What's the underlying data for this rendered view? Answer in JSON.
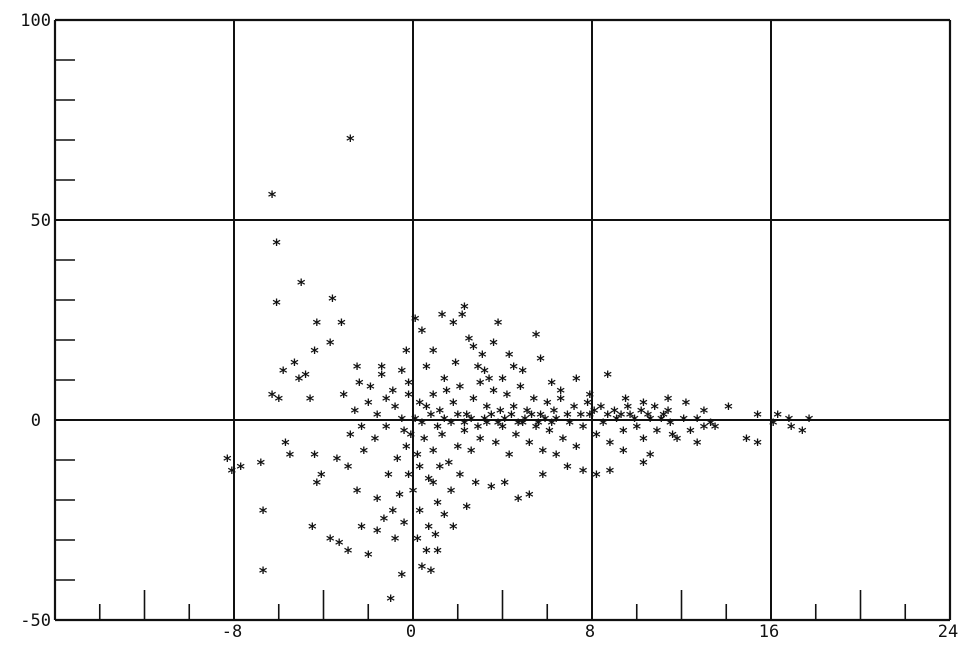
{
  "chart_data": {
    "type": "scatter",
    "title": "",
    "xlabel": "",
    "ylabel": "",
    "xlim": [
      -16,
      24
    ],
    "ylim": [
      -50,
      100
    ],
    "grid": true,
    "marker": "*",
    "x_ticks": [
      -8,
      0,
      8,
      16,
      24
    ],
    "x_tick_labels": [
      "-8",
      "0",
      "8",
      "16",
      "24"
    ],
    "y_ticks": [
      -50,
      50,
      100
    ],
    "y_tick_labels": [
      "-50",
      "50",
      "100"
    ],
    "zero_line_label": "0",
    "series": [
      {
        "points": [
          [
            -2.8,
            70
          ],
          [
            -6.3,
            56
          ],
          [
            -6.1,
            44
          ],
          [
            -6.1,
            29
          ],
          [
            -5.0,
            34
          ],
          [
            -3.6,
            30
          ],
          [
            -4.3,
            24
          ],
          [
            -3.2,
            24
          ],
          [
            -5.8,
            12
          ],
          [
            -5.3,
            14
          ],
          [
            -5.1,
            10
          ],
          [
            -4.8,
            11
          ],
          [
            -4.4,
            17
          ],
          [
            -3.7,
            19
          ],
          [
            -2.5,
            13
          ],
          [
            -3.1,
            6
          ],
          [
            -6.3,
            6
          ],
          [
            -6.0,
            5
          ],
          [
            -4.6,
            5
          ],
          [
            -8.3,
            -10
          ],
          [
            -8.1,
            -13
          ],
          [
            -7.7,
            -12
          ],
          [
            -6.8,
            -11
          ],
          [
            -5.7,
            -6
          ],
          [
            -5.5,
            -9
          ],
          [
            -4.4,
            -9
          ],
          [
            -4.1,
            -14
          ],
          [
            -4.3,
            -16
          ],
          [
            -6.7,
            -23
          ],
          [
            -6.7,
            -38
          ],
          [
            -4.5,
            -27
          ],
          [
            -3.7,
            -30
          ],
          [
            -3.3,
            -31
          ],
          [
            -2.9,
            -33
          ],
          [
            -2.3,
            -27
          ],
          [
            -2.0,
            -34
          ],
          [
            -1.6,
            -28
          ],
          [
            -2.5,
            -18
          ],
          [
            -2.9,
            -12
          ],
          [
            -3.4,
            -10
          ],
          [
            -1.0,
            -45
          ],
          [
            -0.5,
            -39
          ],
          [
            0.4,
            -37
          ],
          [
            1.1,
            -33
          ],
          [
            0.8,
            -38
          ],
          [
            0.1,
            25
          ],
          [
            0.4,
            22
          ],
          [
            1.3,
            26
          ],
          [
            2.3,
            28
          ],
          [
            2.2,
            26
          ],
          [
            1.8,
            24
          ],
          [
            3.8,
            24
          ],
          [
            3.6,
            19
          ],
          [
            5.5,
            21
          ],
          [
            5.7,
            15
          ],
          [
            4.3,
            16
          ],
          [
            2.7,
            18
          ],
          [
            -0.3,
            17
          ],
          [
            0.6,
            13
          ],
          [
            -0.2,
            9
          ],
          [
            1.4,
            10
          ],
          [
            3.2,
            12
          ],
          [
            4.5,
            13
          ],
          [
            6.2,
            9
          ],
          [
            7.3,
            10
          ],
          [
            8.7,
            11
          ],
          [
            6.6,
            7
          ],
          [
            7.9,
            6
          ],
          [
            9.5,
            5
          ],
          [
            10.3,
            4
          ],
          [
            11.4,
            5
          ],
          [
            12.2,
            4
          ],
          [
            13.0,
            2
          ],
          [
            14.1,
            3
          ],
          [
            15.4,
            1
          ],
          [
            16.3,
            1
          ],
          [
            16.8,
            0
          ],
          [
            17.7,
            0
          ],
          [
            17.4,
            -3
          ],
          [
            16.9,
            -2
          ],
          [
            16.1,
            -1
          ],
          [
            15.4,
            -6
          ],
          [
            14.9,
            -5
          ],
          [
            13.5,
            -2
          ],
          [
            12.7,
            -6
          ],
          [
            11.6,
            -4
          ],
          [
            10.6,
            -9
          ],
          [
            10.3,
            -11
          ],
          [
            9.4,
            -8
          ],
          [
            8.8,
            -13
          ],
          [
            8.2,
            -14
          ],
          [
            7.6,
            -13
          ],
          [
            6.9,
            -12
          ],
          [
            6.4,
            -9
          ],
          [
            5.8,
            -14
          ],
          [
            5.2,
            -19
          ],
          [
            4.7,
            -20
          ],
          [
            4.1,
            -16
          ],
          [
            3.5,
            -17
          ],
          [
            2.8,
            -16
          ],
          [
            2.4,
            -22
          ],
          [
            2.1,
            -14
          ],
          [
            1.7,
            -18
          ],
          [
            1.4,
            -24
          ],
          [
            1.1,
            -21
          ],
          [
            0.7,
            -27
          ],
          [
            0.3,
            -23
          ],
          [
            0.0,
            -18
          ],
          [
            -0.2,
            -14
          ],
          [
            -0.6,
            -19
          ],
          [
            -0.9,
            -23
          ],
          [
            -1.3,
            -25
          ],
          [
            -1.6,
            -20
          ],
          [
            -1.1,
            -14
          ],
          [
            -0.7,
            -10
          ],
          [
            -0.3,
            -7
          ],
          [
            0.2,
            -9
          ],
          [
            0.5,
            -5
          ],
          [
            0.9,
            -8
          ],
          [
            1.3,
            -4
          ],
          [
            1.6,
            -11
          ],
          [
            2.0,
            -7
          ],
          [
            2.3,
            -3
          ],
          [
            2.6,
            -8
          ],
          [
            3.0,
            -5
          ],
          [
            3.3,
            -1
          ],
          [
            3.7,
            -6
          ],
          [
            4.0,
            -2
          ],
          [
            4.3,
            -9
          ],
          [
            4.6,
            -4
          ],
          [
            4.9,
            -1
          ],
          [
            5.2,
            -6
          ],
          [
            5.5,
            -2
          ],
          [
            5.8,
            -8
          ],
          [
            6.1,
            -3
          ],
          [
            6.4,
            0
          ],
          [
            6.7,
            -5
          ],
          [
            7.0,
            -1
          ],
          [
            7.3,
            -7
          ],
          [
            7.6,
            -2
          ],
          [
            7.9,
            1
          ],
          [
            8.2,
            -4
          ],
          [
            8.5,
            -1
          ],
          [
            8.8,
            -6
          ],
          [
            9.1,
            0
          ],
          [
            9.4,
            -3
          ],
          [
            9.7,
            1
          ],
          [
            10.0,
            -2
          ],
          [
            10.3,
            -5
          ],
          [
            10.6,
            0
          ],
          [
            10.9,
            -3
          ],
          [
            11.2,
            1
          ],
          [
            11.5,
            -1
          ],
          [
            11.8,
            -5
          ],
          [
            12.1,
            0
          ],
          [
            12.4,
            -3
          ],
          [
            12.7,
            0
          ],
          [
            13.0,
            -2
          ],
          [
            13.3,
            -1
          ],
          [
            0.6,
            3
          ],
          [
            0.9,
            6
          ],
          [
            1.2,
            2
          ],
          [
            1.5,
            7
          ],
          [
            1.8,
            4
          ],
          [
            2.1,
            8
          ],
          [
            2.4,
            1
          ],
          [
            2.7,
            5
          ],
          [
            3.0,
            9
          ],
          [
            3.3,
            3
          ],
          [
            3.6,
            7
          ],
          [
            3.9,
            2
          ],
          [
            4.2,
            6
          ],
          [
            4.5,
            3
          ],
          [
            4.8,
            8
          ],
          [
            5.1,
            2
          ],
          [
            5.4,
            5
          ],
          [
            5.7,
            1
          ],
          [
            6.0,
            4
          ],
          [
            6.3,
            2
          ],
          [
            6.6,
            5
          ],
          [
            6.9,
            1
          ],
          [
            7.2,
            3
          ],
          [
            7.5,
            1
          ],
          [
            7.8,
            4
          ],
          [
            8.1,
            2
          ],
          [
            8.4,
            3
          ],
          [
            8.7,
            1
          ],
          [
            9.0,
            2
          ],
          [
            9.3,
            1
          ],
          [
            9.6,
            3
          ],
          [
            9.9,
            0
          ],
          [
            10.2,
            2
          ],
          [
            10.5,
            1
          ],
          [
            10.8,
            3
          ],
          [
            11.1,
            0
          ],
          [
            11.4,
            2
          ],
          [
            -0.8,
            3
          ],
          [
            -1.2,
            5
          ],
          [
            -1.6,
            1
          ],
          [
            -2.0,
            4
          ],
          [
            -2.3,
            -2
          ],
          [
            -2.6,
            2
          ],
          [
            -1.9,
            8
          ],
          [
            -1.4,
            11
          ],
          [
            -0.9,
            7
          ],
          [
            -0.5,
            12
          ],
          [
            -2.8,
            -4
          ],
          [
            -2.2,
            -8
          ],
          [
            -1.7,
            -5
          ],
          [
            -1.2,
            -2
          ],
          [
            -0.4,
            -3
          ],
          [
            0.1,
            0
          ],
          [
            0.4,
            -1
          ],
          [
            0.8,
            1
          ],
          [
            1.1,
            -2
          ],
          [
            1.4,
            0
          ],
          [
            1.7,
            -1
          ],
          [
            2.0,
            1
          ],
          [
            2.3,
            -1
          ],
          [
            2.6,
            0
          ],
          [
            2.9,
            -2
          ],
          [
            3.2,
            0
          ],
          [
            3.5,
            1
          ],
          [
            3.8,
            -1
          ],
          [
            4.1,
            0
          ],
          [
            4.4,
            1
          ],
          [
            4.7,
            -1
          ],
          [
            5.0,
            0
          ],
          [
            5.3,
            1
          ],
          [
            5.6,
            -1
          ],
          [
            5.9,
            0
          ],
          [
            6.2,
            -1
          ],
          [
            0.2,
            -30
          ],
          [
            0.6,
            -33
          ],
          [
            1.0,
            -29
          ],
          [
            -0.4,
            -26
          ],
          [
            -0.8,
            -30
          ],
          [
            0.9,
            -16
          ],
          [
            1.8,
            -27
          ],
          [
            0.3,
            -12
          ],
          [
            0.7,
            -15
          ],
          [
            1.2,
            -12
          ],
          [
            -0.1,
            -4
          ],
          [
            -0.5,
            0
          ],
          [
            0.3,
            4
          ],
          [
            -0.2,
            6
          ],
          [
            2.9,
            13
          ],
          [
            3.4,
            10
          ],
          [
            4.0,
            10
          ],
          [
            4.9,
            12
          ],
          [
            1.9,
            14
          ],
          [
            0.9,
            17
          ],
          [
            2.5,
            20
          ],
          [
            3.1,
            16
          ],
          [
            -1.4,
            13
          ],
          [
            -2.4,
            9
          ]
        ]
      }
    ]
  }
}
